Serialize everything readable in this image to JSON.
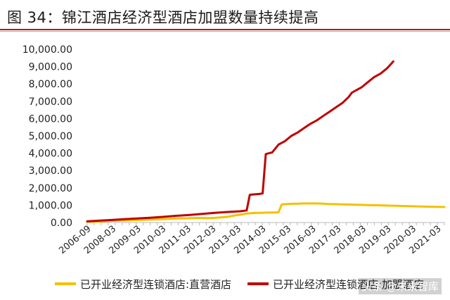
{
  "title": "图 34：锦江酒店经济型酒店加盟数量持续提高",
  "watermark": "头条 @未来智库",
  "colors": {
    "title_rule": "#b01c1c",
    "franchise": "#c00000",
    "direct": "#f5c000"
  },
  "chart_data": {
    "type": "line",
    "title": "",
    "xlabel": "",
    "ylabel": "",
    "ylim": [
      0,
      10000
    ],
    "yticks": [
      "0.00",
      "1,000.00",
      "2,000.00",
      "3,000.00",
      "4,000.00",
      "5,000.00",
      "6,000.00",
      "7,000.00",
      "8,000.00",
      "9,000.00",
      "10,000.00"
    ],
    "xticks": [
      "2006-09",
      "2008-03",
      "2009-03",
      "2010-03",
      "2011-03",
      "2012-03",
      "2013-03",
      "2014-03",
      "2015-03",
      "2016-03",
      "2017-03",
      "2018-03",
      "2019-03",
      "2020-03",
      "2021-03"
    ],
    "legend_position": "bottom",
    "series": [
      {
        "name": "已开业经济型连锁酒店:直营酒店",
        "color": "#f5c000",
        "values": [
          [
            0,
            40
          ],
          [
            4,
            60
          ],
          [
            8,
            100
          ],
          [
            14,
            140
          ],
          [
            20,
            180
          ],
          [
            24,
            200
          ],
          [
            28,
            230
          ],
          [
            30,
            240
          ],
          [
            32,
            250
          ],
          [
            34,
            260
          ],
          [
            36,
            260
          ],
          [
            38,
            250
          ],
          [
            40,
            270
          ],
          [
            42,
            300
          ],
          [
            44,
            330
          ],
          [
            46,
            400
          ],
          [
            48,
            450
          ],
          [
            50,
            520
          ],
          [
            52,
            550
          ],
          [
            54,
            560
          ],
          [
            56,
            570
          ],
          [
            58,
            580
          ],
          [
            59,
            580
          ],
          [
            60,
            590
          ],
          [
            61,
            1050
          ],
          [
            62,
            1060
          ],
          [
            64,
            1080
          ],
          [
            66,
            1090
          ],
          [
            68,
            1100
          ],
          [
            70,
            1100
          ],
          [
            72,
            1100
          ],
          [
            74,
            1090
          ],
          [
            76,
            1070
          ],
          [
            78,
            1060
          ],
          [
            80,
            1050
          ],
          [
            82,
            1040
          ],
          [
            84,
            1030
          ],
          [
            86,
            1020
          ],
          [
            88,
            1010
          ],
          [
            90,
            1000
          ],
          [
            92,
            990
          ],
          [
            94,
            980
          ],
          [
            96,
            970
          ],
          [
            98,
            960
          ],
          [
            100,
            950
          ],
          [
            102,
            940
          ],
          [
            104,
            930
          ],
          [
            106,
            920
          ],
          [
            108,
            910
          ],
          [
            110,
            905
          ],
          [
            112,
            900
          ]
        ]
      },
      {
        "name": "已开业经济型连锁酒店:加盟酒店",
        "color": "#c00000",
        "values": [
          [
            0,
            70
          ],
          [
            4,
            110
          ],
          [
            8,
            150
          ],
          [
            12,
            200
          ],
          [
            16,
            240
          ],
          [
            20,
            280
          ],
          [
            24,
            330
          ],
          [
            28,
            390
          ],
          [
            32,
            440
          ],
          [
            36,
            500
          ],
          [
            40,
            560
          ],
          [
            44,
            610
          ],
          [
            48,
            650
          ],
          [
            50,
            700
          ],
          [
            51,
            1600
          ],
          [
            52,
            1620
          ],
          [
            54,
            1650
          ],
          [
            55,
            1680
          ],
          [
            56,
            3950
          ],
          [
            58,
            4050
          ],
          [
            60,
            4500
          ],
          [
            62,
            4700
          ],
          [
            64,
            5000
          ],
          [
            66,
            5200
          ],
          [
            68,
            5450
          ],
          [
            70,
            5700
          ],
          [
            72,
            5900
          ],
          [
            74,
            6150
          ],
          [
            76,
            6400
          ],
          [
            78,
            6650
          ],
          [
            80,
            6900
          ],
          [
            82,
            7250
          ],
          [
            83,
            7500
          ],
          [
            84,
            7600
          ],
          [
            86,
            7800
          ],
          [
            88,
            8100
          ],
          [
            90,
            8400
          ],
          [
            92,
            8600
          ],
          [
            94,
            8900
          ],
          [
            96,
            9300
          ]
        ]
      }
    ]
  }
}
